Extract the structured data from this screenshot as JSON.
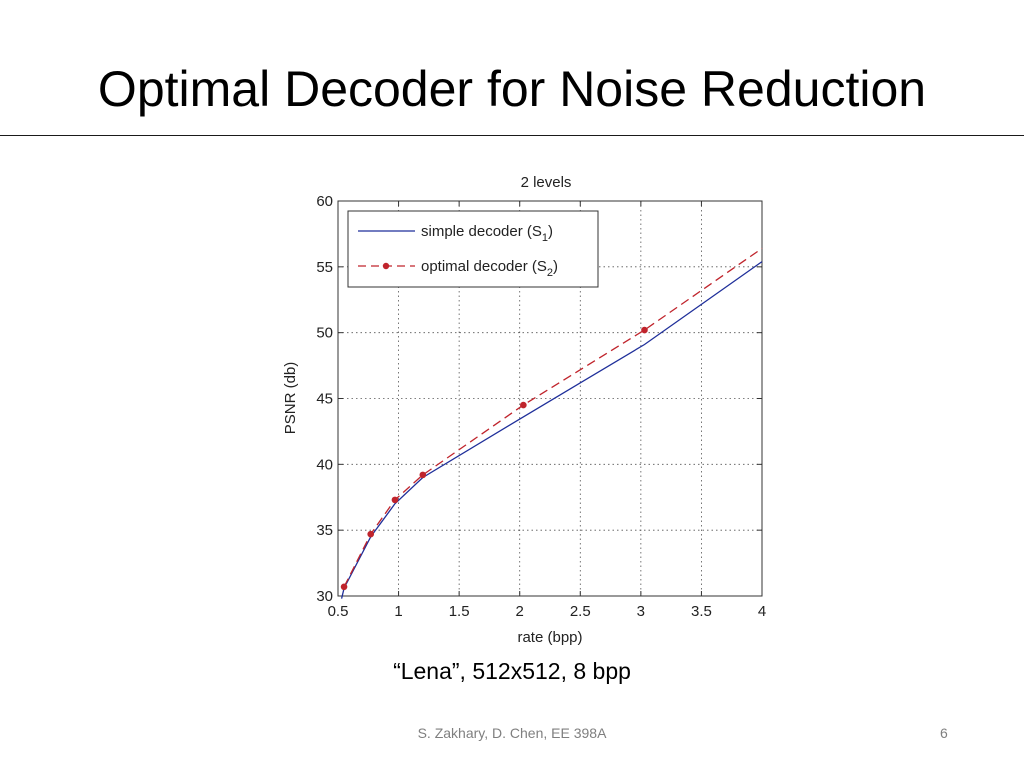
{
  "slide": {
    "title": "Optimal Decoder for Noise Reduction",
    "caption": "“Lena”, 512x512, 8 bpp",
    "footer": "S. Zakhary, D. Chen, EE 398A",
    "page_number": "6"
  },
  "chart_data": {
    "type": "line",
    "title": "2 levels",
    "xlabel": "rate (bpp)",
    "ylabel": "PSNR (db)",
    "xlim": [
      0.5,
      4
    ],
    "ylim": [
      30,
      60
    ],
    "xticks": [
      0.5,
      1,
      1.5,
      2,
      2.5,
      3,
      3.5,
      4
    ],
    "xtick_labels": [
      "0.5",
      "1",
      "1.5",
      "2",
      "2.5",
      "3",
      "3.5",
      "4"
    ],
    "yticks": [
      30,
      35,
      40,
      45,
      50,
      55,
      60
    ],
    "ytick_labels": [
      "30",
      "35",
      "40",
      "45",
      "50",
      "55",
      "60"
    ],
    "grid": true,
    "legend_position": "top-left",
    "series": [
      {
        "name_main": "simple decoder (S",
        "name_sub": "1",
        "name_end": ")",
        "color": "#1f2f9a",
        "style": "solid",
        "markers": false,
        "x": [
          0.53,
          0.55,
          0.77,
          0.97,
          1.2,
          2.03,
          3.03,
          4.0
        ],
        "y": [
          29.8,
          30.6,
          34.5,
          37.0,
          39.0,
          43.6,
          49.1,
          55.4
        ]
      },
      {
        "name_main": "optimal decoder (S",
        "name_sub": "2",
        "name_end": ")",
        "color": "#c0242c",
        "style": "dashed",
        "markers": true,
        "x": [
          0.55,
          0.77,
          0.97,
          1.2,
          2.03,
          3.03,
          4.0
        ],
        "y": [
          30.7,
          34.7,
          37.3,
          39.2,
          44.5,
          50.2,
          56.4
        ],
        "marker_x": [
          0.55,
          0.77,
          0.97,
          1.2,
          2.03,
          3.03
        ],
        "marker_y": [
          30.7,
          34.7,
          37.3,
          39.2,
          44.5,
          50.2
        ]
      }
    ]
  }
}
